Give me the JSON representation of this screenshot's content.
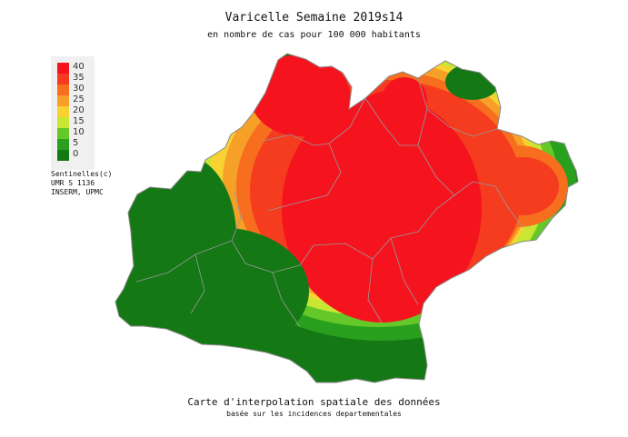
{
  "header": {
    "title": "Varicelle Semaine 2019s14",
    "subtitle": "en nombre de cas pour 100 000 habitants"
  },
  "legend": {
    "items": [
      {
        "label": "40",
        "color": "#f5141e"
      },
      {
        "label": "35",
        "color": "#f53c1e"
      },
      {
        "label": "30",
        "color": "#f76e1e"
      },
      {
        "label": "25",
        "color": "#f7a028"
      },
      {
        "label": "20",
        "color": "#f7d232"
      },
      {
        "label": "15",
        "color": "#c8e632"
      },
      {
        "label": "10",
        "color": "#64c828"
      },
      {
        "label": "5",
        "color": "#28a01e"
      },
      {
        "label": "0",
        "color": "#147814"
      }
    ]
  },
  "credits": {
    "line1": "Sentinelles(c)",
    "line2": "UMR S 1136",
    "line3": "INSERM, UPMC"
  },
  "footer": {
    "caption": "Carte d'interpolation spatiale des données",
    "caption_sub": "basée sur les incidences departementales"
  },
  "colors": {
    "level_40": "#f5141e",
    "level_35": "#f53c1e",
    "level_30": "#f76e1e",
    "level_25": "#f7a028",
    "level_20": "#f7d232",
    "level_15": "#c8e632",
    "level_10": "#64c828",
    "level_5": "#28a01e",
    "level_0": "#147814",
    "borders": "#999999"
  }
}
